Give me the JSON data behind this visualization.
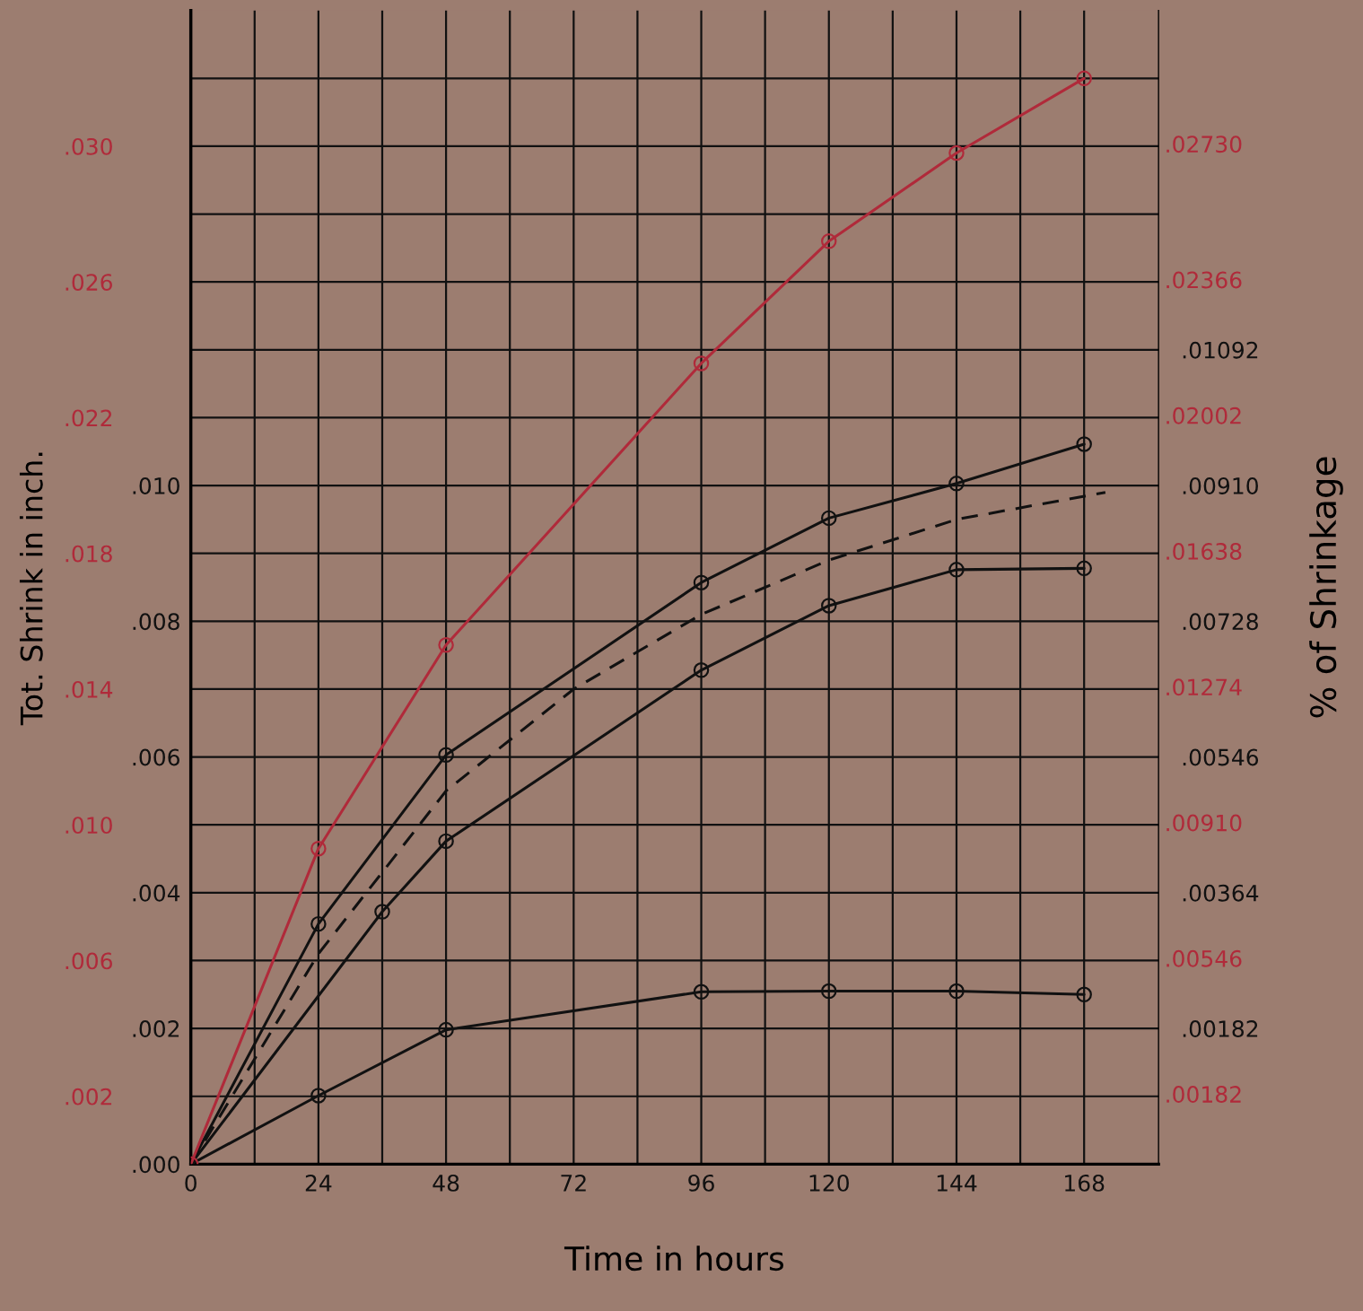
{
  "chart_data": {
    "type": "line",
    "xlabel": "Time in hours",
    "y2label": "Tot. Shrink in inch.",
    "y3label": "% of Shrinkage",
    "xlim": [
      0,
      182
    ],
    "xticks": [
      0,
      {
        "value": 12,
        "label": null
      },
      24,
      {
        "value": 36,
        "label": null
      },
      48,
      {
        "value": 60,
        "label": null
      },
      72,
      {
        "value": 84,
        "label": null
      },
      96,
      {
        "value": 108,
        "label": null
      },
      120,
      {
        "value": 132,
        "label": null
      },
      144,
      {
        "value": 156,
        "label": null
      },
      168
    ],
    "ylim": [
      0,
      0.017
    ],
    "yticks": [
      {
        "value": 0,
        "label": ".000"
      },
      {
        "value": 0.001,
        "label": null
      },
      {
        "value": 0.002,
        "label": ".002"
      },
      {
        "value": 0.003,
        "label": null
      },
      {
        "value": 0.004,
        "label": ".004"
      },
      {
        "value": 0.005,
        "label": null
      },
      {
        "value": 0.006,
        "label": ".006"
      },
      {
        "value": 0.007,
        "label": null
      },
      {
        "value": 0.008,
        "label": ".008"
      },
      {
        "value": 0.009,
        "label": null
      },
      {
        "value": 0.01,
        "label": ".010"
      },
      {
        "value": 0.011,
        "label": null
      },
      {
        "value": 0.012,
        "label": null
      },
      {
        "value": 0.013,
        "label": null
      },
      {
        "value": 0.014,
        "label": null
      },
      {
        "value": 0.015,
        "label": null
      },
      {
        "value": 0.016,
        "label": null
      }
    ],
    "y2lim": [
      0,
      0.034
    ],
    "y2ticks": [
      {
        "value": 0.002,
        "label": ".002"
      },
      {
        "value": 0.006,
        "label": ".006"
      },
      {
        "value": 0.01,
        "label": ".010"
      },
      {
        "value": 0.014,
        "label": ".014"
      },
      {
        "value": 0.018,
        "label": ".018"
      },
      {
        "value": 0.022,
        "label": ".022"
      },
      {
        "value": 0.026,
        "label": ".026"
      },
      {
        "value": 0.03,
        "label": ".030"
      }
    ],
    "y3lim": [
      0,
      0.01547
    ],
    "y3ticks": [
      {
        "value": 0.00182,
        "label": ".00182"
      },
      {
        "value": 0.00364,
        "label": ".00364"
      },
      {
        "value": 0.00546,
        "label": ".00546"
      },
      {
        "value": 0.00728,
        "label": ".00728"
      },
      {
        "value": 0.0091,
        "label": ".00910"
      },
      {
        "value": 0.01092,
        "label": ".01092"
      }
    ],
    "annotations": [
      ".00182",
      ".00546",
      ".00910",
      ".01274",
      ".01638",
      ".02002",
      ".02366",
      ".02730"
    ],
    "grid": true,
    "series": [
      {
        "axis": "y2",
        "color": "#b02a3a",
        "marker": "circle",
        "line_style": "solid",
        "x": [
          0,
          24,
          48,
          96,
          120,
          144,
          168
        ],
        "values": [
          0,
          0.0093,
          0.0153,
          0.0236,
          0.0272,
          0.0298,
          0.032
        ]
      },
      {
        "color": "#111111",
        "marker": "circle",
        "line_style": "solid",
        "x": [
          0,
          24,
          48,
          96,
          120,
          144,
          168
        ],
        "values": [
          0,
          0.00354,
          0.00603,
          0.00857,
          0.00952,
          0.01003,
          0.01061
        ]
      },
      {
        "color": "#111111",
        "marker": "none",
        "line_style": "dashed",
        "x": [
          0,
          24,
          48,
          72,
          96,
          120,
          144,
          172
        ],
        "values": [
          0,
          0.0031,
          0.0055,
          0.007,
          0.0081,
          0.0089,
          0.0095,
          0.0099
        ]
      },
      {
        "color": "#111111",
        "marker": "circle",
        "line_style": "solid",
        "x": [
          0,
          36,
          48,
          96,
          120,
          144,
          168
        ],
        "values": [
          0,
          0.00372,
          0.00476,
          0.00728,
          0.00823,
          0.00876,
          0.00878
        ]
      },
      {
        "color": "#111111",
        "marker": "circle",
        "line_style": "solid",
        "x": [
          0,
          24,
          48,
          96,
          120,
          144,
          168
        ],
        "values": [
          0,
          0.00101,
          0.00198,
          0.00254,
          0.00255,
          0.00255,
          0.0025
        ]
      }
    ]
  }
}
